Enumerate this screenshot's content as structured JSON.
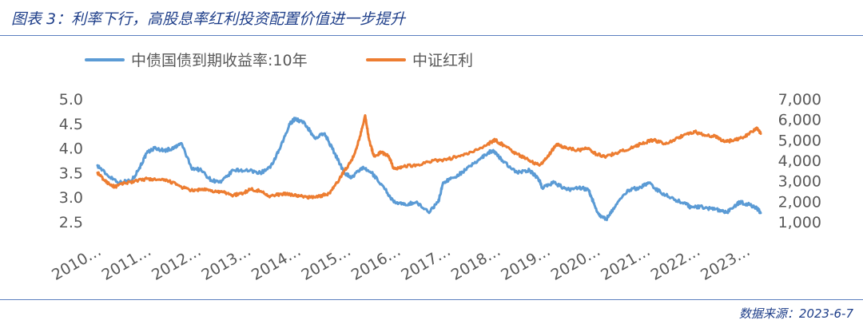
{
  "figure": {
    "title": "图表 3：利率下行，高股息率红利投资配置价值进一步提升",
    "source": "数据来源：2023-6-7"
  },
  "colors": {
    "series_bond": "#5b9bd5",
    "series_dividend": "#ed7d31",
    "title": "#1f3f8a",
    "rule": "#5b7fbf",
    "tick": "#595959"
  },
  "chart_data": {
    "type": "line",
    "title": "",
    "xlabel": "",
    "ylabel": "",
    "x_tick_labels": [
      "2010…",
      "2011…",
      "2012…",
      "2013…",
      "2014…",
      "2015…",
      "2016…",
      "2017…",
      "2018…",
      "2019…",
      "2020…",
      "2021…",
      "2022…",
      "2023…"
    ],
    "y_left": {
      "ticks": [
        "5.0",
        "4.5",
        "4.0",
        "3.5",
        "3.0",
        "2.5"
      ],
      "lim": [
        2.5,
        5.0
      ]
    },
    "y_right": {
      "ticks": [
        "7,000",
        "6,000",
        "5,000",
        "4,000",
        "3,000",
        "2,000",
        "1,000"
      ],
      "lim": [
        1000,
        7000
      ]
    },
    "legend_position": "top",
    "series": [
      {
        "name": "中债国债到期收益率:10年",
        "axis": "left",
        "points": [
          [
            2010.0,
            3.65
          ],
          [
            2010.2,
            3.45
          ],
          [
            2010.45,
            3.3
          ],
          [
            2010.7,
            3.35
          ],
          [
            2010.85,
            3.6
          ],
          [
            2011.0,
            3.9
          ],
          [
            2011.15,
            4.0
          ],
          [
            2011.35,
            3.95
          ],
          [
            2011.55,
            4.0
          ],
          [
            2011.7,
            4.1
          ],
          [
            2011.9,
            3.6
          ],
          [
            2012.1,
            3.55
          ],
          [
            2012.3,
            3.35
          ],
          [
            2012.5,
            3.3
          ],
          [
            2012.75,
            3.55
          ],
          [
            2013.0,
            3.55
          ],
          [
            2013.3,
            3.5
          ],
          [
            2013.5,
            3.6
          ],
          [
            2013.7,
            4.0
          ],
          [
            2013.9,
            4.5
          ],
          [
            2014.0,
            4.6
          ],
          [
            2014.2,
            4.5
          ],
          [
            2014.4,
            4.2
          ],
          [
            2014.6,
            4.3
          ],
          [
            2014.8,
            3.9
          ],
          [
            2015.0,
            3.5
          ],
          [
            2015.15,
            3.4
          ],
          [
            2015.35,
            3.6
          ],
          [
            2015.55,
            3.5
          ],
          [
            2015.8,
            3.2
          ],
          [
            2016.0,
            2.9
          ],
          [
            2016.2,
            2.85
          ],
          [
            2016.45,
            2.9
          ],
          [
            2016.7,
            2.7
          ],
          [
            2016.9,
            2.9
          ],
          [
            2017.0,
            3.3
          ],
          [
            2017.2,
            3.4
          ],
          [
            2017.45,
            3.55
          ],
          [
            2017.7,
            3.75
          ],
          [
            2017.9,
            3.9
          ],
          [
            2018.0,
            3.95
          ],
          [
            2018.2,
            3.75
          ],
          [
            2018.5,
            3.5
          ],
          [
            2018.75,
            3.55
          ],
          [
            2018.95,
            3.35
          ],
          [
            2019.0,
            3.2
          ],
          [
            2019.25,
            3.3
          ],
          [
            2019.5,
            3.15
          ],
          [
            2019.75,
            3.2
          ],
          [
            2019.95,
            3.15
          ],
          [
            2020.0,
            3.0
          ],
          [
            2020.15,
            2.65
          ],
          [
            2020.3,
            2.55
          ],
          [
            2020.5,
            2.85
          ],
          [
            2020.75,
            3.15
          ],
          [
            2021.0,
            3.2
          ],
          [
            2021.15,
            3.3
          ],
          [
            2021.4,
            3.1
          ],
          [
            2021.7,
            2.95
          ],
          [
            2021.95,
            2.85
          ],
          [
            2022.0,
            2.8
          ],
          [
            2022.25,
            2.8
          ],
          [
            2022.5,
            2.75
          ],
          [
            2022.75,
            2.7
          ],
          [
            2022.95,
            2.85
          ],
          [
            2023.0,
            2.9
          ],
          [
            2023.2,
            2.85
          ],
          [
            2023.35,
            2.78
          ],
          [
            2023.43,
            2.68
          ]
        ]
      },
      {
        "name": "中证红利",
        "axis": "right",
        "points": [
          [
            2010.0,
            3400
          ],
          [
            2010.15,
            3000
          ],
          [
            2010.35,
            2700
          ],
          [
            2010.55,
            2900
          ],
          [
            2010.8,
            3000
          ],
          [
            2011.0,
            3100
          ],
          [
            2011.2,
            3050
          ],
          [
            2011.45,
            3000
          ],
          [
            2011.7,
            2700
          ],
          [
            2011.95,
            2500
          ],
          [
            2012.1,
            2600
          ],
          [
            2012.3,
            2500
          ],
          [
            2012.55,
            2450
          ],
          [
            2012.75,
            2300
          ],
          [
            2012.95,
            2400
          ],
          [
            2013.1,
            2600
          ],
          [
            2013.3,
            2500
          ],
          [
            2013.5,
            2250
          ],
          [
            2013.7,
            2350
          ],
          [
            2013.9,
            2350
          ],
          [
            2014.1,
            2250
          ],
          [
            2014.3,
            2200
          ],
          [
            2014.5,
            2250
          ],
          [
            2014.7,
            2400
          ],
          [
            2014.85,
            2900
          ],
          [
            2015.0,
            3500
          ],
          [
            2015.15,
            4000
          ],
          [
            2015.3,
            5000
          ],
          [
            2015.42,
            6200
          ],
          [
            2015.5,
            5000
          ],
          [
            2015.6,
            4200
          ],
          [
            2015.75,
            4400
          ],
          [
            2015.9,
            4200
          ],
          [
            2016.0,
            3600
          ],
          [
            2016.2,
            3700
          ],
          [
            2016.5,
            3800
          ],
          [
            2016.8,
            4000
          ],
          [
            2017.0,
            4000
          ],
          [
            2017.3,
            4200
          ],
          [
            2017.6,
            4400
          ],
          [
            2017.9,
            4800
          ],
          [
            2018.05,
            5000
          ],
          [
            2018.25,
            4700
          ],
          [
            2018.5,
            4300
          ],
          [
            2018.75,
            4000
          ],
          [
            2018.95,
            3750
          ],
          [
            2019.15,
            4300
          ],
          [
            2019.3,
            4800
          ],
          [
            2019.5,
            4600
          ],
          [
            2019.75,
            4500
          ],
          [
            2019.95,
            4600
          ],
          [
            2020.1,
            4300
          ],
          [
            2020.3,
            4200
          ],
          [
            2020.55,
            4400
          ],
          [
            2020.8,
            4600
          ],
          [
            2021.0,
            4800
          ],
          [
            2021.25,
            5000
          ],
          [
            2021.5,
            4800
          ],
          [
            2021.75,
            5100
          ],
          [
            2021.95,
            5300
          ],
          [
            2022.1,
            5400
          ],
          [
            2022.3,
            5200
          ],
          [
            2022.5,
            5200
          ],
          [
            2022.7,
            4900
          ],
          [
            2022.9,
            5000
          ],
          [
            2023.05,
            5100
          ],
          [
            2023.2,
            5300
          ],
          [
            2023.35,
            5600
          ],
          [
            2023.43,
            5300
          ]
        ]
      }
    ]
  }
}
